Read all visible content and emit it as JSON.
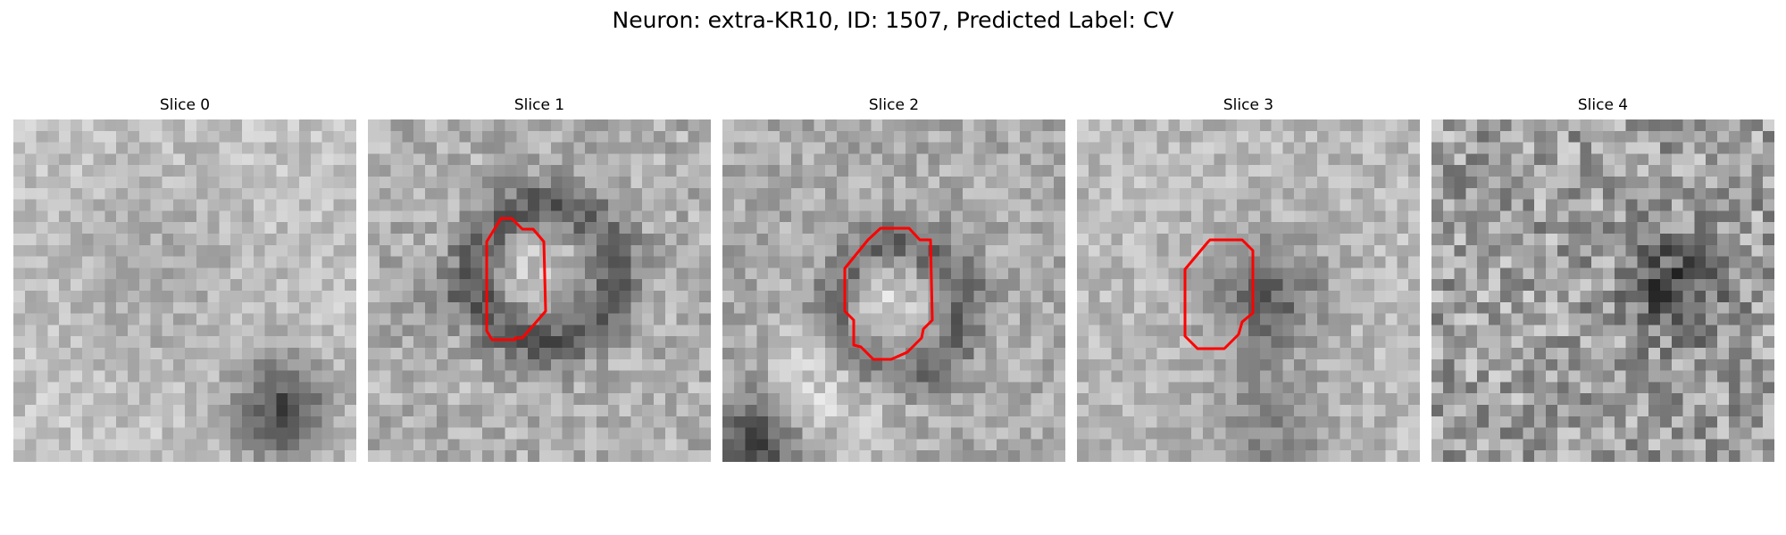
{
  "figure": {
    "title": "Neuron: extra-KR10, ID: 1507, Predicted Label: CV",
    "contour_color": "#ff0000"
  },
  "panels": [
    {
      "title": "Slice 0",
      "has_contour": false
    },
    {
      "title": "Slice 1",
      "has_contour": true
    },
    {
      "title": "Slice 2",
      "has_contour": true
    },
    {
      "title": "Slice 3",
      "has_contour": true
    },
    {
      "title": "Slice 4",
      "has_contour": false
    }
  ]
}
